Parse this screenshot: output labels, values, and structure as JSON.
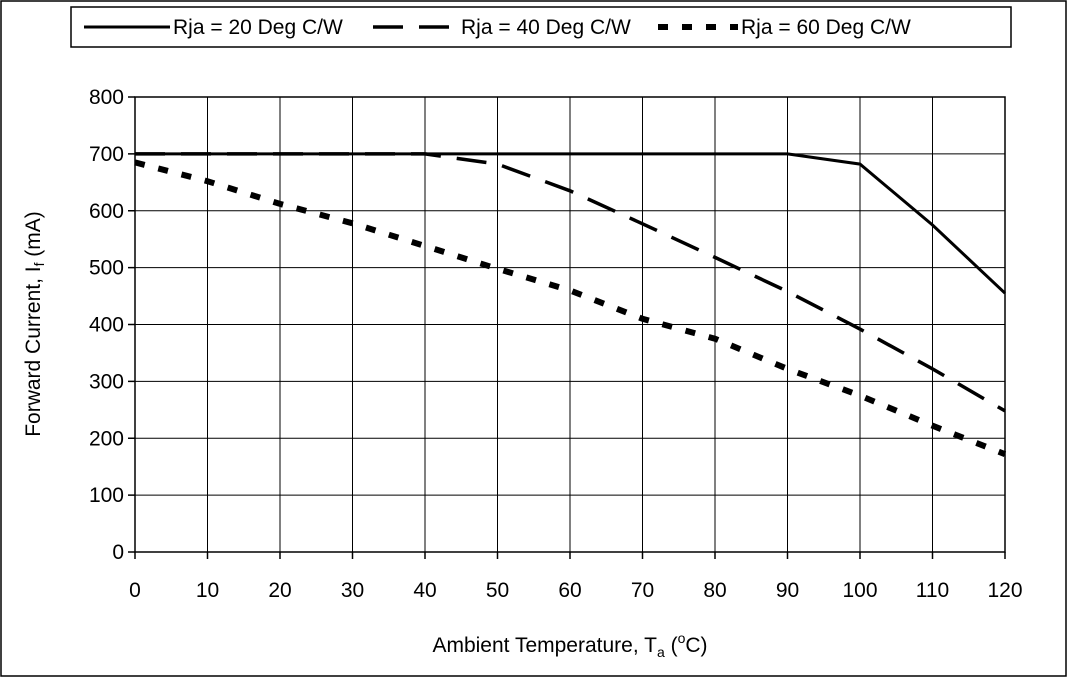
{
  "chart_data": {
    "type": "line",
    "xlabel": {
      "main": "Ambient Temperature, T",
      "sub": "a",
      "pre_sup": " (",
      "sup": "o",
      "post": "C)"
    },
    "ylabel": {
      "main": "Forward Current, I",
      "sub": "f",
      "post": " (mA)"
    },
    "xlim": [
      0,
      120
    ],
    "ylim": [
      0,
      800
    ],
    "xticks": [
      "0",
      "10",
      "20",
      "30",
      "40",
      "50",
      "60",
      "70",
      "80",
      "90",
      "100",
      "110",
      "120"
    ],
    "yticks": [
      "0",
      "100",
      "200",
      "300",
      "400",
      "500",
      "600",
      "700",
      "800"
    ],
    "grid": true,
    "legend_position": "top",
    "series": [
      {
        "name": "Rja = 20 Deg C/W",
        "style": "solid",
        "color": "#000000",
        "x": [
          0,
          10,
          20,
          30,
          40,
          50,
          60,
          70,
          80,
          90,
          100,
          110,
          120
        ],
        "y": [
          700,
          700,
          700,
          700,
          700,
          700,
          700,
          700,
          700,
          700,
          682,
          575,
          455
        ]
      },
      {
        "name": "Rja = 40 Deg C/W",
        "style": "dash",
        "color": "#000000",
        "x": [
          0,
          10,
          20,
          30,
          40,
          50,
          60,
          70,
          80,
          90,
          100,
          110,
          120
        ],
        "y": [
          700,
          700,
          700,
          700,
          700,
          682,
          635,
          577,
          518,
          458,
          392,
          322,
          248
        ]
      },
      {
        "name": "Rja = 60 Deg C/W",
        "style": "dot",
        "color": "#000000",
        "x": [
          0,
          10,
          20,
          30,
          40,
          50,
          60,
          70,
          80,
          90,
          100,
          110,
          120
        ],
        "y": [
          685,
          652,
          612,
          578,
          538,
          498,
          460,
          410,
          375,
          322,
          275,
          222,
          172
        ]
      }
    ]
  }
}
